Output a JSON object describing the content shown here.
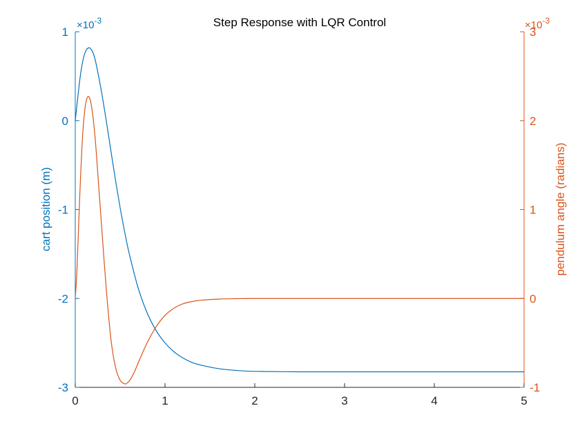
{
  "chart_data": {
    "type": "line",
    "title": "Step Response with LQR Control",
    "xlabel": "",
    "xlim": [
      0,
      5
    ],
    "x_ticks": [
      0,
      1,
      2,
      3,
      4,
      5
    ],
    "left_axis": {
      "ylabel": "cart position (m)",
      "exponent_label": "×10",
      "exponent": "-3",
      "ylim": [
        -3,
        1
      ],
      "ticks": [
        -3,
        -2,
        -1,
        0,
        1
      ],
      "color": "#0072BD"
    },
    "right_axis": {
      "ylabel": "pendulum angle (radians)",
      "exponent_label": "×10",
      "exponent": "-3",
      "ylim": [
        -1,
        3
      ],
      "ticks": [
        -1,
        0,
        1,
        2,
        3
      ],
      "color": "#D95319"
    },
    "grid": false,
    "series": [
      {
        "axis": "left",
        "color": "#0072BD",
        "x": [
          0,
          0.03,
          0.06,
          0.09,
          0.12,
          0.15,
          0.17,
          0.2,
          0.23,
          0.26,
          0.3,
          0.35,
          0.4,
          0.45,
          0.5,
          0.55,
          0.6,
          0.7,
          0.8,
          0.9,
          1.0,
          1.1,
          1.2,
          1.3,
          1.4,
          1.6,
          1.8,
          2.0,
          2.5,
          3.0,
          4.0,
          5.0
        ],
        "values": [
          0,
          0.28,
          0.53,
          0.7,
          0.79,
          0.82,
          0.81,
          0.76,
          0.65,
          0.5,
          0.28,
          -0.03,
          -0.36,
          -0.68,
          -0.98,
          -1.25,
          -1.49,
          -1.88,
          -2.16,
          -2.36,
          -2.5,
          -2.6,
          -2.67,
          -2.72,
          -2.75,
          -2.79,
          -2.81,
          -2.82,
          -2.825,
          -2.825,
          -2.825,
          -2.825
        ]
      },
      {
        "axis": "right",
        "color": "#D95319",
        "x": [
          0,
          0.02,
          0.05,
          0.08,
          0.11,
          0.14,
          0.17,
          0.2,
          0.23,
          0.26,
          0.3,
          0.35,
          0.4,
          0.45,
          0.5,
          0.55,
          0.58,
          0.62,
          0.67,
          0.72,
          0.8,
          0.9,
          1.0,
          1.1,
          1.2,
          1.3,
          1.4,
          1.6,
          1.8,
          2.0,
          2.5,
          3.0,
          4.0,
          5.0
        ],
        "values": [
          0,
          0.35,
          1.15,
          1.8,
          2.15,
          2.27,
          2.22,
          2.02,
          1.7,
          1.28,
          0.72,
          0.05,
          -0.48,
          -0.78,
          -0.92,
          -0.96,
          -0.95,
          -0.9,
          -0.8,
          -0.68,
          -0.5,
          -0.32,
          -0.19,
          -0.11,
          -0.06,
          -0.035,
          -0.02,
          -0.007,
          -0.002,
          0,
          0,
          0,
          0,
          0
        ]
      }
    ]
  }
}
